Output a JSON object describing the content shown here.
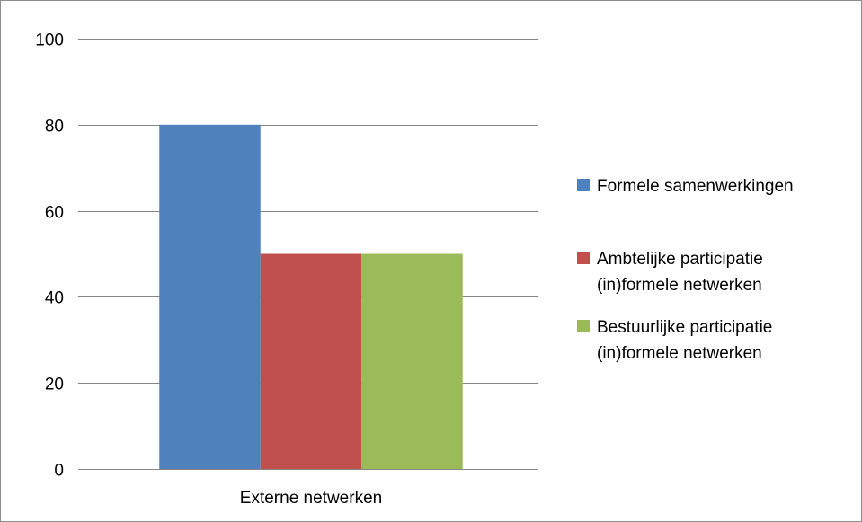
{
  "chart_data": {
    "type": "bar",
    "categories": [
      "Externe netwerken"
    ],
    "series": [
      {
        "name": "Formele samenwerkingen",
        "values": [
          80
        ],
        "color": "#4f81bd"
      },
      {
        "name": "Ambtelijke participatie (in)formele netwerken",
        "values": [
          50
        ],
        "color": "#c0504d"
      },
      {
        "name": "Bestuurlijke participatie (in)formele netwerken",
        "values": [
          50
        ],
        "color": "#9bbb59"
      }
    ],
    "legend": [
      {
        "lines": [
          "Formele samenwerkingen"
        ],
        "color": "#4f81bd"
      },
      {
        "lines": [
          "Ambtelijke participatie",
          "(in)formele netwerken"
        ],
        "color": "#c0504d"
      },
      {
        "lines": [
          "Bestuurlijke participatie",
          "(in)formele netwerken"
        ],
        "color": "#9bbb59"
      }
    ],
    "title": "",
    "xlabel": "",
    "ylabel": "",
    "ylim": [
      0,
      100
    ],
    "yticks": [
      "0",
      "20",
      "40",
      "60",
      "80",
      "100"
    ],
    "grid": true,
    "legend_position": "right",
    "gridline_color": "#868686"
  }
}
